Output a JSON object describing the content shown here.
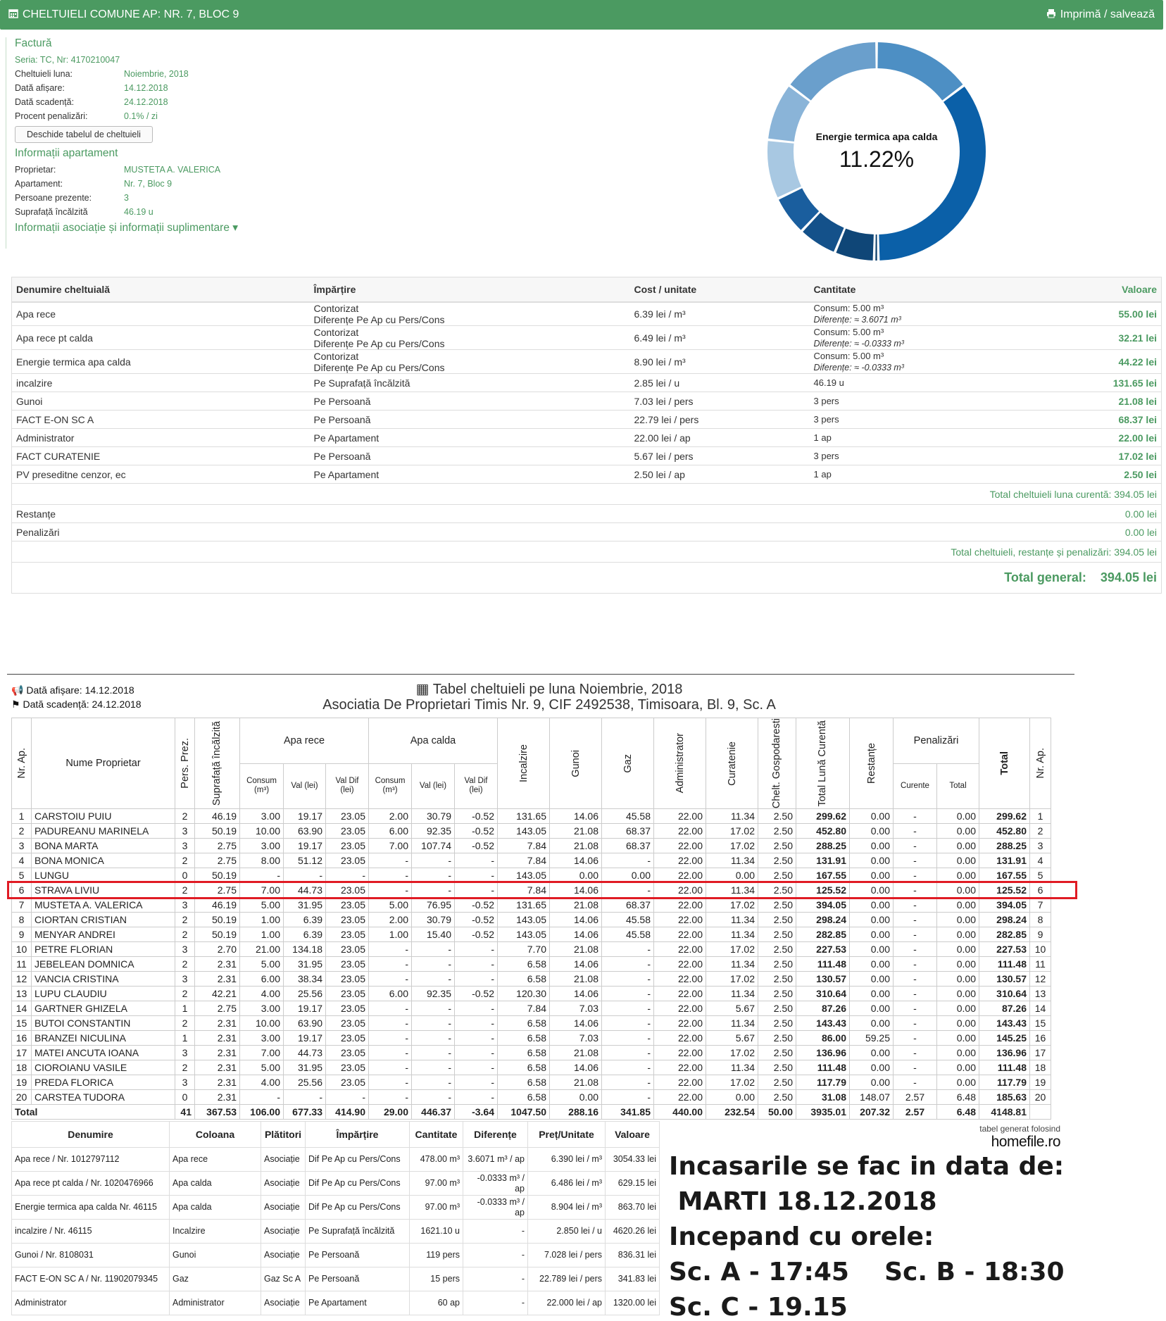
{
  "header": {
    "title": "CHELTUIELI COMUNE AP: NR. 7, BLOC 9",
    "print_label": "Imprimă / salvează"
  },
  "invoice": {
    "title": "Factură",
    "serie": "Seria: TC, Nr: 4170210047",
    "rows": [
      {
        "k": "Cheltuieli luna:",
        "v": "Noiembrie, 2018"
      },
      {
        "k": "Dată afișare:",
        "v": "14.12.2018"
      },
      {
        "k": "Dată scadență:",
        "v": "24.12.2018"
      },
      {
        "k": "Procent penalizări:",
        "v": "0.1% / zi"
      }
    ],
    "button": "Deschide tabelul de cheltuieli"
  },
  "apartment": {
    "title": "Informații apartament",
    "rows": [
      {
        "k": "Proprietar:",
        "v": "MUSTETA A. VALERICA"
      },
      {
        "k": "Apartament:",
        "v": "Nr. 7, Bloc 9"
      },
      {
        "k": "Persoane prezente:",
        "v": "3"
      },
      {
        "k": "Suprafață încălzită",
        "v": "46.19 u"
      }
    ],
    "more": "Informații asociație și informații suplimentare"
  },
  "donut": {
    "label": "Energie termica apa calda",
    "percent": "11.22%",
    "slices": [
      {
        "value": 14.0,
        "color": "#4d8fc4"
      },
      {
        "value": 33.4,
        "color": "#0b60a8"
      },
      {
        "value": 0.6,
        "color": "#0b3e6a"
      },
      {
        "value": 5.6,
        "color": "#0f4677"
      },
      {
        "value": 5.5,
        "color": "#14518a"
      },
      {
        "value": 5.6,
        "color": "#1a5e9e"
      },
      {
        "value": 8.4,
        "color": "#a8c8e2"
      },
      {
        "value": 8.2,
        "color": "#8ab4d8"
      },
      {
        "value": 14.0,
        "color": "#6a9fcc"
      }
    ]
  },
  "expenses": {
    "headers": [
      "Denumire cheltuială",
      "Împărțire",
      "Cost / unitate",
      "Cantitate",
      "Valoare"
    ],
    "rows": [
      {
        "name": "Apa rece",
        "imp1": "Contorizat",
        "imp2": "Diferențe Pe Ap cu Pers/Cons",
        "cost": "6.39 lei / m³",
        "q1": "Consum: 5.00 m³",
        "q2": "Diferențe: ≈ 3.6071 m³",
        "val": "55.00 lei"
      },
      {
        "name": "Apa rece pt calda",
        "imp1": "Contorizat",
        "imp2": "Diferențe Pe Ap cu Pers/Cons",
        "cost": "6.49 lei / m³",
        "q1": "Consum: 5.00 m³",
        "q2": "Diferențe: ≈ -0.0333 m³",
        "val": "32.21 lei"
      },
      {
        "name": "Energie termica apa calda",
        "imp1": "Contorizat",
        "imp2": "Diferențe Pe Ap cu Pers/Cons",
        "cost": "8.90 lei / m³",
        "q1": "Consum: 5.00 m³",
        "q2": "Diferențe: ≈ -0.0333 m³",
        "val": "44.22 lei"
      },
      {
        "name": "incalzire",
        "imp1": "Pe Suprafață încălzită",
        "imp2": "",
        "cost": "2.85 lei / u",
        "q1": "46.19 u",
        "q2": "",
        "val": "131.65 lei"
      },
      {
        "name": "Gunoi",
        "imp1": "Pe Persoană",
        "imp2": "",
        "cost": "7.03 lei / pers",
        "q1": "3 pers",
        "q2": "",
        "val": "21.08 lei"
      },
      {
        "name": "FACT E-ON SC A",
        "imp1": "Pe Persoană",
        "imp2": "",
        "cost": "22.79 lei / pers",
        "q1": "3 pers",
        "q2": "",
        "val": "68.37 lei"
      },
      {
        "name": "Administrator",
        "imp1": "Pe Apartament",
        "imp2": "",
        "cost": "22.00 lei / ap",
        "q1": "1 ap",
        "q2": "",
        "val": "22.00 lei"
      },
      {
        "name": "FACT CURATENIE",
        "imp1": "Pe Persoană",
        "imp2": "",
        "cost": "5.67 lei / pers",
        "q1": "3 pers",
        "q2": "",
        "val": "17.02 lei"
      },
      {
        "name": "PV preseditne cenzor, ec",
        "imp1": "Pe Apartament",
        "imp2": "",
        "cost": "2.50 lei / ap",
        "q1": "1 ap",
        "q2": "",
        "val": "2.50 lei"
      }
    ],
    "total_current": "Total cheltuieli luna curentă: 394.05 lei",
    "restante": {
      "label": "Restanțe",
      "val": "0.00 lei"
    },
    "penalizari": {
      "label": "Penalizări",
      "val": "0.00 lei"
    },
    "total_all": "Total cheltuieli, restanțe și penalizări: 394.05 lei",
    "grand_label": "Total general:",
    "grand_value": "394.05 lei"
  },
  "table": {
    "date_afisare": "Dată afișare: 14.12.2018",
    "date_scadenta": "Dată scadență: 24.12.2018",
    "title": "Tabel cheltuieli pe luna Noiembrie, 2018",
    "subtitle": "Asociatia De Proprietari Timis Nr. 9, CIF 2492538, Timisoara, Bl. 9, Sc. A",
    "h": {
      "nr": "Nr. Ap.",
      "nume": "Nume Proprietar",
      "pers": "Pers. Prez.",
      "supr": "Suprafață încălzită",
      "apa_rece": "Apa rece",
      "apa_calda": "Apa calda",
      "consum": "Consum (m³)",
      "val": "Val (lei)",
      "valdif": "Val Dif (lei)",
      "incalzire": "Incalzire",
      "gunoi": "Gunoi",
      "gaz": "Gaz",
      "admin": "Administrator",
      "curatenie": "Curatenie",
      "chelt": "Chelt. Gospodaresti",
      "total_luna": "Total Lună Curentă",
      "restante": "Restanțe",
      "penalizari": "Penalizări",
      "curente": "Curente",
      "total": "Total",
      "total_main": "Total",
      "nr2": "Nr. Ap."
    },
    "rows": [
      [
        "1",
        "CARSTOIU PUIU",
        "2",
        "46.19",
        "3.00",
        "19.17",
        "23.05",
        "2.00",
        "30.79",
        "-0.52",
        "131.65",
        "14.06",
        "45.58",
        "22.00",
        "11.34",
        "2.50",
        "299.62",
        "0.00",
        "-",
        "0.00",
        "299.62",
        "1"
      ],
      [
        "2",
        "PADUREANU MARINELA",
        "3",
        "50.19",
        "10.00",
        "63.90",
        "23.05",
        "6.00",
        "92.35",
        "-0.52",
        "143.05",
        "21.08",
        "68.37",
        "22.00",
        "17.02",
        "2.50",
        "452.80",
        "0.00",
        "-",
        "0.00",
        "452.80",
        "2"
      ],
      [
        "3",
        "BONA MARTA",
        "3",
        "2.75",
        "3.00",
        "19.17",
        "23.05",
        "7.00",
        "107.74",
        "-0.52",
        "7.84",
        "21.08",
        "68.37",
        "22.00",
        "17.02",
        "2.50",
        "288.25",
        "0.00",
        "-",
        "0.00",
        "288.25",
        "3"
      ],
      [
        "4",
        "BONA MONICA",
        "2",
        "2.75",
        "8.00",
        "51.12",
        "23.05",
        "-",
        "-",
        "-",
        "7.84",
        "14.06",
        "-",
        "22.00",
        "11.34",
        "2.50",
        "131.91",
        "0.00",
        "-",
        "0.00",
        "131.91",
        "4"
      ],
      [
        "5",
        "LUNGU",
        "0",
        "50.19",
        "-",
        "-",
        "-",
        "-",
        "-",
        "-",
        "143.05",
        "0.00",
        "0.00",
        "22.00",
        "0.00",
        "2.50",
        "167.55",
        "0.00",
        "-",
        "0.00",
        "167.55",
        "5"
      ],
      [
        "6",
        "STRAVA LIVIU",
        "2",
        "2.75",
        "7.00",
        "44.73",
        "23.05",
        "-",
        "-",
        "-",
        "7.84",
        "14.06",
        "-",
        "22.00",
        "11.34",
        "2.50",
        "125.52",
        "0.00",
        "-",
        "0.00",
        "125.52",
        "6"
      ],
      [
        "7",
        "MUSTETA A. VALERICA",
        "3",
        "46.19",
        "5.00",
        "31.95",
        "23.05",
        "5.00",
        "76.95",
        "-0.52",
        "131.65",
        "21.08",
        "68.37",
        "22.00",
        "17.02",
        "2.50",
        "394.05",
        "0.00",
        "-",
        "0.00",
        "394.05",
        "7"
      ],
      [
        "8",
        "CIORTAN CRISTIAN",
        "2",
        "50.19",
        "1.00",
        "6.39",
        "23.05",
        "2.00",
        "30.79",
        "-0.52",
        "143.05",
        "14.06",
        "45.58",
        "22.00",
        "11.34",
        "2.50",
        "298.24",
        "0.00",
        "-",
        "0.00",
        "298.24",
        "8"
      ],
      [
        "9",
        "MENYAR ANDREI",
        "2",
        "50.19",
        "1.00",
        "6.39",
        "23.05",
        "1.00",
        "15.40",
        "-0.52",
        "143.05",
        "14.06",
        "45.58",
        "22.00",
        "11.34",
        "2.50",
        "282.85",
        "0.00",
        "-",
        "0.00",
        "282.85",
        "9"
      ],
      [
        "10",
        "PETRE FLORIAN",
        "3",
        "2.70",
        "21.00",
        "134.18",
        "23.05",
        "-",
        "-",
        "-",
        "7.70",
        "21.08",
        "-",
        "22.00",
        "17.02",
        "2.50",
        "227.53",
        "0.00",
        "-",
        "0.00",
        "227.53",
        "10"
      ],
      [
        "11",
        "JEBELEAN DOMNICA",
        "2",
        "2.31",
        "5.00",
        "31.95",
        "23.05",
        "-",
        "-",
        "-",
        "6.58",
        "14.06",
        "-",
        "22.00",
        "11.34",
        "2.50",
        "111.48",
        "0.00",
        "-",
        "0.00",
        "111.48",
        "11"
      ],
      [
        "12",
        "VANCIA CRISTINA",
        "3",
        "2.31",
        "6.00",
        "38.34",
        "23.05",
        "-",
        "-",
        "-",
        "6.58",
        "21.08",
        "-",
        "22.00",
        "17.02",
        "2.50",
        "130.57",
        "0.00",
        "-",
        "0.00",
        "130.57",
        "12"
      ],
      [
        "13",
        "LUPU CLAUDIU",
        "2",
        "42.21",
        "4.00",
        "25.56",
        "23.05",
        "6.00",
        "92.35",
        "-0.52",
        "120.30",
        "14.06",
        "-",
        "22.00",
        "11.34",
        "2.50",
        "310.64",
        "0.00",
        "-",
        "0.00",
        "310.64",
        "13"
      ],
      [
        "14",
        "GARTNER GHIZELA",
        "1",
        "2.75",
        "3.00",
        "19.17",
        "23.05",
        "-",
        "-",
        "-",
        "7.84",
        "7.03",
        "-",
        "22.00",
        "5.67",
        "2.50",
        "87.26",
        "0.00",
        "-",
        "0.00",
        "87.26",
        "14"
      ],
      [
        "15",
        "BUTOI CONSTANTIN",
        "2",
        "2.31",
        "10.00",
        "63.90",
        "23.05",
        "-",
        "-",
        "-",
        "6.58",
        "14.06",
        "-",
        "22.00",
        "11.34",
        "2.50",
        "143.43",
        "0.00",
        "-",
        "0.00",
        "143.43",
        "15"
      ],
      [
        "16",
        "BRANZEI NICULINA",
        "1",
        "2.31",
        "3.00",
        "19.17",
        "23.05",
        "-",
        "-",
        "-",
        "6.58",
        "7.03",
        "-",
        "22.00",
        "5.67",
        "2.50",
        "86.00",
        "59.25",
        "-",
        "0.00",
        "145.25",
        "16"
      ],
      [
        "17",
        "MATEI ANCUTA IOANA",
        "3",
        "2.31",
        "7.00",
        "44.73",
        "23.05",
        "-",
        "-",
        "-",
        "6.58",
        "21.08",
        "-",
        "22.00",
        "17.02",
        "2.50",
        "136.96",
        "0.00",
        "-",
        "0.00",
        "136.96",
        "17"
      ],
      [
        "18",
        "CIOROIANU VASILE",
        "2",
        "2.31",
        "5.00",
        "31.95",
        "23.05",
        "-",
        "-",
        "-",
        "6.58",
        "14.06",
        "-",
        "22.00",
        "11.34",
        "2.50",
        "111.48",
        "0.00",
        "-",
        "0.00",
        "111.48",
        "18"
      ],
      [
        "19",
        "PREDA FLORICA",
        "3",
        "2.31",
        "4.00",
        "25.56",
        "23.05",
        "-",
        "-",
        "-",
        "6.58",
        "21.08",
        "-",
        "22.00",
        "17.02",
        "2.50",
        "117.79",
        "0.00",
        "-",
        "0.00",
        "117.79",
        "19"
      ],
      [
        "20",
        "CARSTEA TUDORA",
        "0",
        "2.31",
        "-",
        "-",
        "-",
        "-",
        "-",
        "-",
        "6.58",
        "0.00",
        "-",
        "22.00",
        "0.00",
        "2.50",
        "31.08",
        "148.07",
        "2.57",
        "6.48",
        "185.63",
        "20"
      ]
    ],
    "total_row": [
      "Total",
      "41",
      "367.53",
      "106.00",
      "677.33",
      "414.90",
      "29.00",
      "446.37",
      "-3.64",
      "1047.50",
      "288.16",
      "341.85",
      "440.00",
      "232.54",
      "50.00",
      "3935.01",
      "207.32",
      "2.57",
      "6.48",
      "4148.81",
      ""
    ]
  },
  "bills": {
    "headers": [
      "Denumire",
      "Coloana",
      "Plătitori",
      "Împărțire",
      "Cantitate",
      "Diferențe",
      "Preț/Unitate",
      "Valoare"
    ],
    "rows": [
      [
        "Apa rece / Nr. 1012797112",
        "Apa rece",
        "Asociație",
        "Dif Pe Ap cu Pers/Cons",
        "478.00 m³",
        "3.6071 m³ / ap",
        "6.390 lei / m³",
        "3054.33 lei"
      ],
      [
        "Apa rece pt calda / Nr. 1020476966",
        "Apa calda",
        "Asociație",
        "Dif Pe Ap cu Pers/Cons",
        "97.00 m³",
        "-0.0333 m³ / ap",
        "6.486 lei / m³",
        "629.15 lei"
      ],
      [
        "Energie termica apa calda Nr. 46115",
        "Apa calda",
        "Asociație",
        "Dif Pe Ap cu Pers/Cons",
        "97.00 m³",
        "-0.0333 m³ / ap",
        "8.904 lei / m³",
        "863.70 lei"
      ],
      [
        "incalzire / Nr. 46115",
        "Incalzire",
        "Asociație",
        "Pe Suprafață încălzită",
        "1621.10 u",
        "-",
        "2.850 lei / u",
        "4620.26 lei"
      ],
      [
        "Gunoi / Nr. 8108031",
        "Gunoi",
        "Asociație",
        "Pe Persoană",
        "119 pers",
        "-",
        "7.028 lei / pers",
        "836.31 lei"
      ],
      [
        "FACT E-ON SC A / Nr. 11902079345",
        "Gaz",
        "Gaz Sc A",
        "Pe Persoană",
        "15 pers",
        "-",
        "22.789 lei / pers",
        "341.83 lei"
      ],
      [
        "Administrator",
        "Administrator",
        "Asociație",
        "Pe Apartament",
        "60 ap",
        "-",
        "22.000 lei / ap",
        "1320.00 lei"
      ]
    ]
  },
  "generated": {
    "small": "tabel generat folosind",
    "logo": "homefile.ro"
  },
  "note": {
    "l1": "Incasarile se fac in data de:",
    "l2": " MARTI 18.12.2018",
    "l3": "Incepand cu orele:",
    "l4": "Sc. A - 17:45    Sc. B - 18:30",
    "l5": "Sc. C - 19.15"
  },
  "colors": {
    "brand": "#4b9a61",
    "highlight": "#e01b24"
  }
}
